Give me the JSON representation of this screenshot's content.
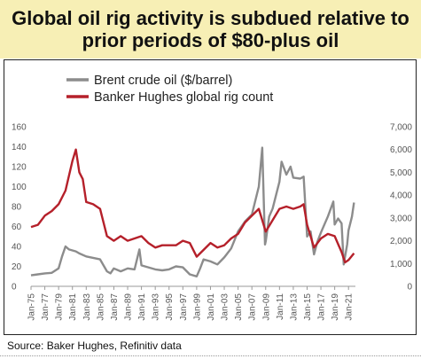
{
  "title_lines": [
    "Global oil rig activity is subdued relative to",
    "prior periods of $80-plus oil"
  ],
  "source": "Source: Baker Hughes, Refinitiv data",
  "chart_data": {
    "type": "line",
    "legend_position": "top-left",
    "grid": false,
    "x_tick_labels": [
      "Jan-75",
      "Jan-77",
      "Jan-79",
      "Jan-81",
      "Jan-83",
      "Jan-85",
      "Jan-87",
      "Jan-89",
      "Jan-91",
      "Jan-93",
      "Jan-95",
      "Jan-97",
      "Jan-99",
      "Jan-01",
      "Jan-03",
      "Jan-05",
      "Jan-07",
      "Jan-09",
      "Jan-11",
      "Jan-13",
      "Jan-15",
      "Jan-17",
      "Jan-19",
      "Jan-21"
    ],
    "y_left": {
      "ylim": [
        0,
        160
      ],
      "ticks": [
        "0",
        "20",
        "40",
        "60",
        "80",
        "100",
        "120",
        "140",
        "160"
      ]
    },
    "y_right": {
      "ylim": [
        0,
        7000
      ],
      "ticks": [
        "0",
        "1,000",
        "2,000",
        "3,000",
        "4,000",
        "5,000",
        "6,000",
        "7,000"
      ]
    },
    "series": [
      {
        "name": "Brent crude oil ($/barrel)",
        "color": "#8c8c8c",
        "axis": "left",
        "points": [
          [
            1975,
            11
          ],
          [
            1976,
            12
          ],
          [
            1977,
            13
          ],
          [
            1978,
            13.5
          ],
          [
            1979,
            18
          ],
          [
            1979.5,
            30
          ],
          [
            1980,
            40
          ],
          [
            1980.5,
            37
          ],
          [
            1981,
            36
          ],
          [
            1981.5,
            35
          ],
          [
            1982,
            33
          ],
          [
            1983,
            30
          ],
          [
            1984,
            28.5
          ],
          [
            1985,
            27
          ],
          [
            1986,
            15
          ],
          [
            1986.5,
            13
          ],
          [
            1987,
            18
          ],
          [
            1988,
            15
          ],
          [
            1989,
            18
          ],
          [
            1990,
            17
          ],
          [
            1990.7,
            37
          ],
          [
            1991,
            21
          ],
          [
            1992,
            19
          ],
          [
            1993,
            17
          ],
          [
            1994,
            16
          ],
          [
            1995,
            17
          ],
          [
            1996,
            20
          ],
          [
            1997,
            19
          ],
          [
            1998,
            12
          ],
          [
            1999,
            10
          ],
          [
            1999.5,
            18
          ],
          [
            2000,
            27
          ],
          [
            2001,
            25
          ],
          [
            2002,
            22
          ],
          [
            2003,
            29
          ],
          [
            2004,
            38
          ],
          [
            2005,
            55
          ],
          [
            2006,
            65
          ],
          [
            2007,
            72
          ],
          [
            2008,
            100
          ],
          [
            2008.5,
            139
          ],
          [
            2008.9,
            42
          ],
          [
            2009,
            45
          ],
          [
            2009.5,
            70
          ],
          [
            2010,
            78
          ],
          [
            2011,
            105
          ],
          [
            2011.3,
            125
          ],
          [
            2012,
            112
          ],
          [
            2012.6,
            120
          ],
          [
            2013,
            109
          ],
          [
            2014,
            108
          ],
          [
            2014.5,
            110
          ],
          [
            2015,
            50
          ],
          [
            2015.5,
            55
          ],
          [
            2016,
            32
          ],
          [
            2016.5,
            45
          ],
          [
            2017,
            54
          ],
          [
            2018,
            70
          ],
          [
            2018.8,
            85
          ],
          [
            2019,
            62
          ],
          [
            2019.5,
            68
          ],
          [
            2020,
            63
          ],
          [
            2020.3,
            22
          ],
          [
            2020.8,
            42
          ],
          [
            2021,
            56
          ],
          [
            2021.5,
            70
          ],
          [
            2021.8,
            84
          ]
        ]
      },
      {
        "name": "Banker Hughes global rig count",
        "color": "#b5202a",
        "axis": "right",
        "points": [
          [
            1975,
            2600
          ],
          [
            1976,
            2700
          ],
          [
            1977,
            3100
          ],
          [
            1978,
            3300
          ],
          [
            1979,
            3600
          ],
          [
            1980,
            4200
          ],
          [
            1981,
            5500
          ],
          [
            1981.5,
            6000
          ],
          [
            1982,
            5000
          ],
          [
            1982.5,
            4700
          ],
          [
            1983,
            3700
          ],
          [
            1984,
            3600
          ],
          [
            1985,
            3400
          ],
          [
            1986,
            2200
          ],
          [
            1987,
            2000
          ],
          [
            1988,
            2200
          ],
          [
            1989,
            2000
          ],
          [
            1990,
            2100
          ],
          [
            1991,
            2200
          ],
          [
            1992,
            1900
          ],
          [
            1993,
            1700
          ],
          [
            1994,
            1800
          ],
          [
            1995,
            1800
          ],
          [
            1996,
            1800
          ],
          [
            1997,
            2000
          ],
          [
            1998,
            1900
          ],
          [
            1999,
            1300
          ],
          [
            2000,
            1600
          ],
          [
            2001,
            1900
          ],
          [
            2002,
            1700
          ],
          [
            2003,
            1800
          ],
          [
            2004,
            2100
          ],
          [
            2005,
            2300
          ],
          [
            2006,
            2800
          ],
          [
            2007,
            3100
          ],
          [
            2008,
            3400
          ],
          [
            2009,
            2400
          ],
          [
            2010,
            2900
          ],
          [
            2011,
            3400
          ],
          [
            2012,
            3500
          ],
          [
            2013,
            3400
          ],
          [
            2014,
            3500
          ],
          [
            2014.5,
            3600
          ],
          [
            2015,
            2700
          ],
          [
            2016,
            1700
          ],
          [
            2017,
            2100
          ],
          [
            2018,
            2300
          ],
          [
            2019,
            2200
          ],
          [
            2020,
            1500
          ],
          [
            2020.5,
            1050
          ],
          [
            2021,
            1150
          ],
          [
            2021.8,
            1450
          ]
        ]
      }
    ]
  }
}
